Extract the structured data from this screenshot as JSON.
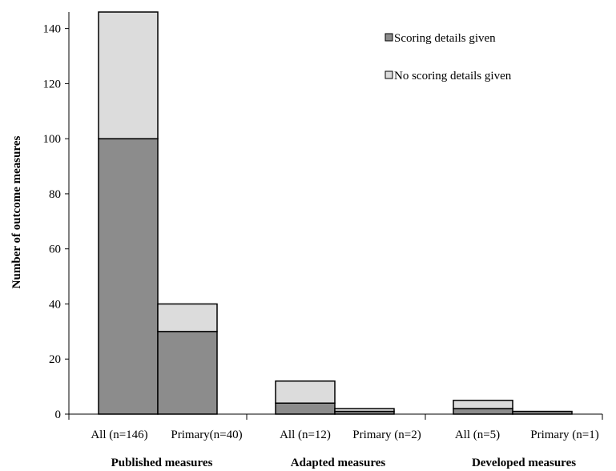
{
  "chart_data": {
    "type": "bar",
    "stacked": true,
    "title": "",
    "xlabel": "",
    "ylabel": "Number of outcome measures",
    "ylim": [
      0,
      146
    ],
    "yticks": [
      0,
      20,
      40,
      60,
      80,
      100,
      120,
      140
    ],
    "grid": false,
    "legend_position": "top-right",
    "categories": [
      "All (n=146)",
      "Primary(n=40)",
      "All (n=12)",
      "Primary (n=2)",
      "All (n=5)",
      "Primary (n=1)"
    ],
    "groups": [
      {
        "label": "Published measures",
        "categories": [
          0,
          1
        ]
      },
      {
        "label": "Adapted measures",
        "categories": [
          2,
          3
        ]
      },
      {
        "label": "Developed measures",
        "categories": [
          4,
          5
        ]
      }
    ],
    "series": [
      {
        "name": "Scoring details given",
        "color": "#8c8c8c",
        "values": [
          100,
          30,
          4,
          1,
          2,
          1
        ]
      },
      {
        "name": "No scoring details given",
        "color": "#dcdcdc",
        "values": [
          46,
          10,
          8,
          1,
          3,
          0
        ]
      }
    ]
  }
}
